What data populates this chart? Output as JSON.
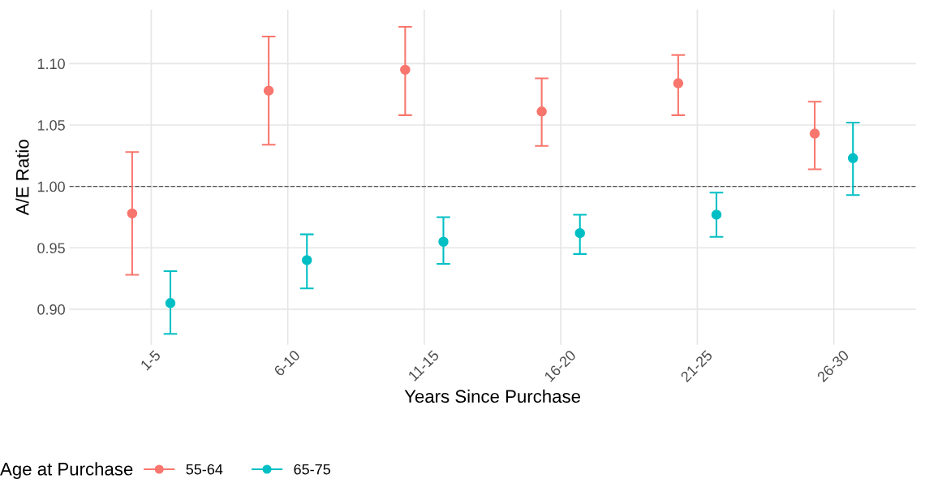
{
  "chart_data": {
    "type": "scatter",
    "xlabel": "Years Since Purchase",
    "ylabel": "A/E Ratio",
    "legend_title": "Age at Purchase",
    "categories": [
      "1-5",
      "6-10",
      "11-15",
      "16-20",
      "21-25",
      "26-30"
    ],
    "series": [
      {
        "name": "55-64",
        "color": "#f8766d",
        "values": [
          0.978,
          1.078,
          1.095,
          1.061,
          1.084,
          1.043
        ],
        "errors": [
          [
            0.928,
            1.028
          ],
          [
            1.034,
            1.122
          ],
          [
            1.058,
            1.13
          ],
          [
            1.033,
            1.088
          ],
          [
            1.058,
            1.107
          ],
          [
            1.014,
            1.069
          ]
        ]
      },
      {
        "name": "65-75",
        "color": "#00bfc4",
        "values": [
          0.905,
          0.94,
          0.955,
          0.962,
          0.977,
          1.023
        ],
        "errors": [
          [
            0.88,
            0.931
          ],
          [
            0.917,
            0.961
          ],
          [
            0.937,
            0.975
          ],
          [
            0.945,
            0.977
          ],
          [
            0.959,
            0.995
          ],
          [
            0.993,
            1.052
          ]
        ]
      }
    ],
    "ylim": [
      0.871,
      1.144
    ],
    "yticks": [
      {
        "value": 0.9,
        "label": "0.90"
      },
      {
        "value": 0.95,
        "label": "0.95"
      },
      {
        "value": 1.0,
        "label": "1.00"
      },
      {
        "value": 1.05,
        "label": "1.05"
      },
      {
        "value": 1.1,
        "label": "1.10"
      }
    ],
    "ref_lines": [
      {
        "axis": "y",
        "value": 1.0,
        "color": "#555555",
        "line_style": "dashed"
      }
    ],
    "grid": true,
    "legend": "bottom",
    "marker": "circle"
  }
}
